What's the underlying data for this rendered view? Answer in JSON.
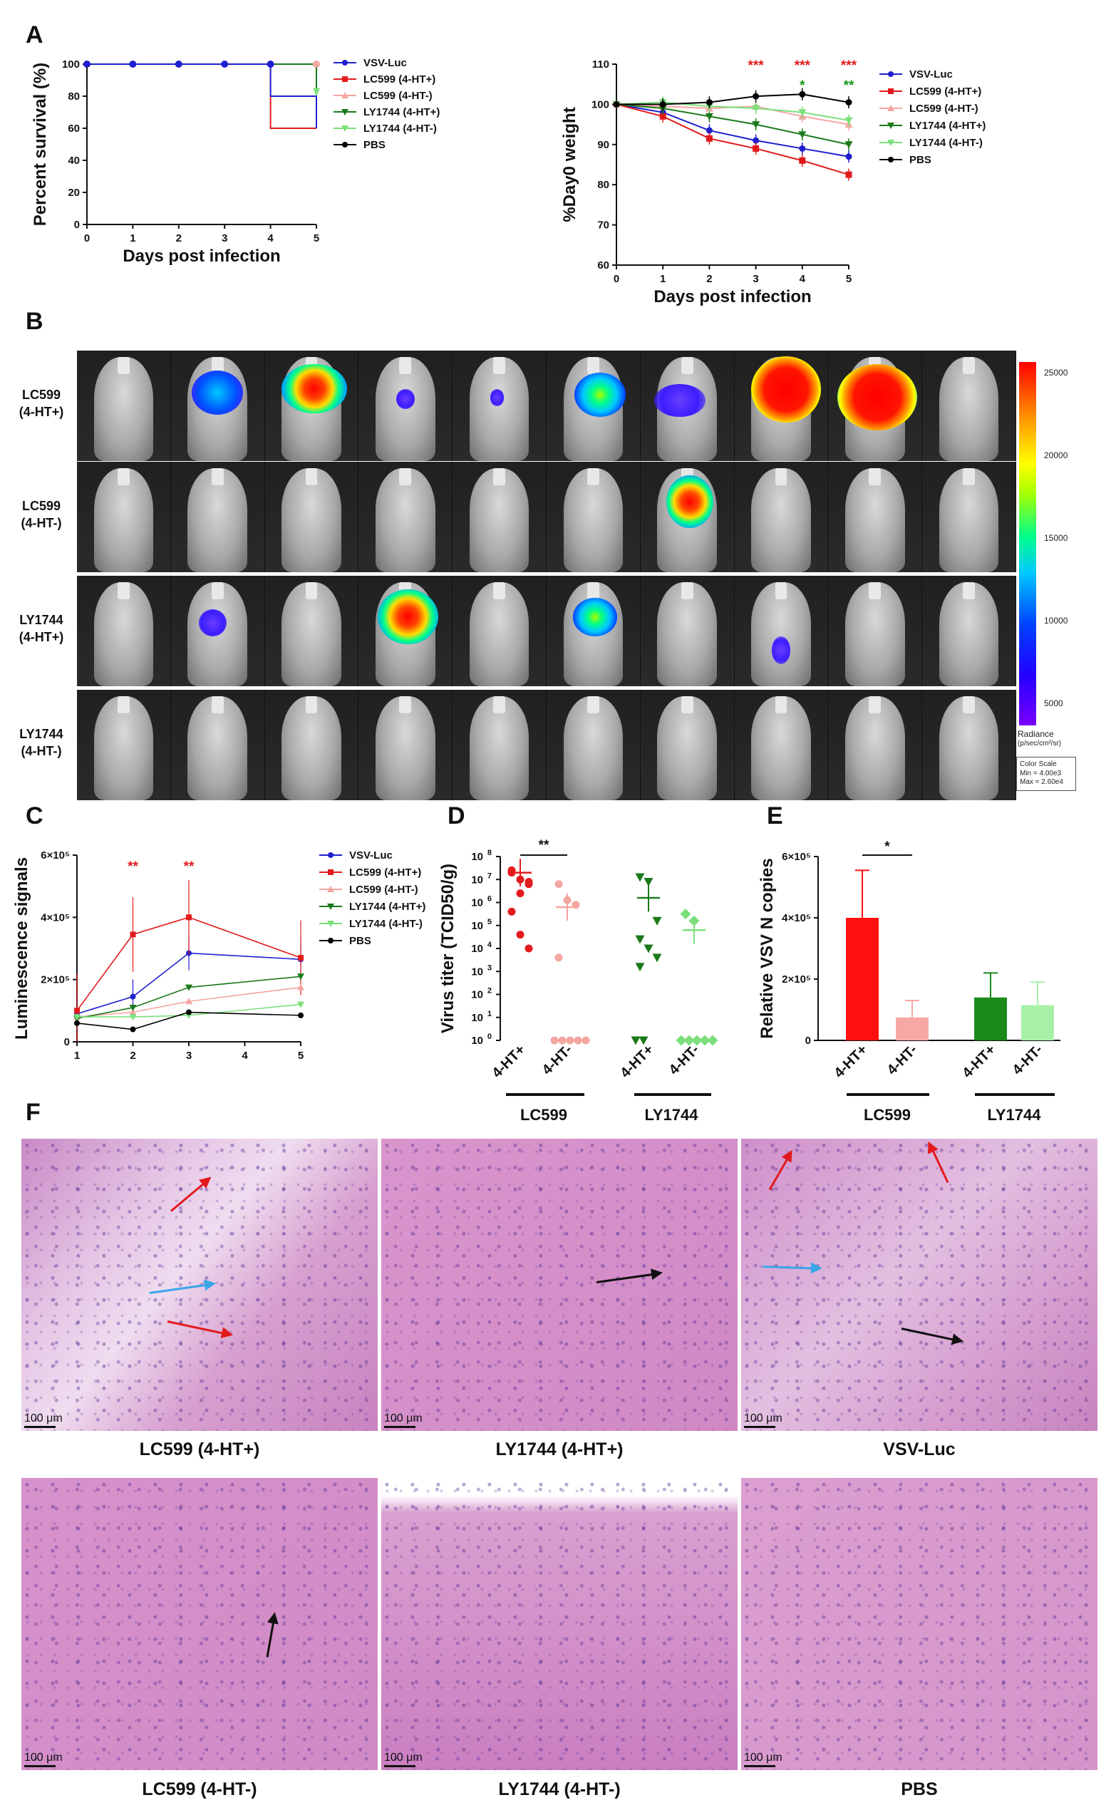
{
  "panels": {
    "A": "A",
    "B": "B",
    "C": "C",
    "D": "D",
    "E": "E",
    "F": "F"
  },
  "colors": {
    "vsv": "#1f1fd0",
    "lc599p": "#e31a1c",
    "lc599m": "#f4a6a0",
    "ly1744p": "#1a7a1a",
    "ly1744m": "#7be07b",
    "pbs": "#000000"
  },
  "chart_data": [
    {
      "id": "A1",
      "type": "line",
      "title": "",
      "xlabel": "Days post infection",
      "ylabel": "Percent survival (%)",
      "xlim": [
        0,
        5
      ],
      "ylim": [
        0,
        100
      ],
      "xticks": [
        "0",
        "1",
        "2",
        "3",
        "4",
        "5"
      ],
      "yticks": [
        "0",
        "20",
        "40",
        "60",
        "80",
        "100"
      ],
      "legend": [
        "VSV-Luc",
        "LC599 (4-HT+)",
        "LC599 (4-HT-)",
        "LY1744 (4-HT+)",
        "LY1744 (4-HT-)",
        "PBS"
      ],
      "series": [
        {
          "name": "VSV-Luc",
          "x": [
            0,
            1,
            2,
            3,
            4,
            4,
            5,
            5
          ],
          "y": [
            100,
            100,
            100,
            100,
            100,
            80,
            80,
            60
          ],
          "step": true
        },
        {
          "name": "LC599 (4-HT+)",
          "x": [
            0,
            4,
            4,
            5
          ],
          "y": [
            100,
            100,
            60,
            60
          ],
          "step": true
        },
        {
          "name": "LC599 (4-HT-)",
          "x": [
            0,
            5
          ],
          "y": [
            100,
            100
          ]
        },
        {
          "name": "LY1744 (4-HT+)",
          "x": [
            0,
            5,
            5
          ],
          "y": [
            100,
            100,
            80
          ]
        },
        {
          "name": "LY1744 (4-HT-)",
          "x": [
            0,
            5
          ],
          "y": [
            100,
            100
          ]
        },
        {
          "name": "PBS",
          "x": [
            0,
            5
          ],
          "y": [
            100,
            100
          ]
        }
      ]
    },
    {
      "id": "A2",
      "type": "line",
      "title": "",
      "xlabel": "Days post infection",
      "ylabel": "%Day0 weight",
      "xlim": [
        0,
        5
      ],
      "ylim": [
        60,
        110
      ],
      "xticks": [
        "0",
        "1",
        "2",
        "3",
        "4",
        "5"
      ],
      "yticks": [
        "60",
        "70",
        "80",
        "90",
        "100",
        "110"
      ],
      "legend": [
        "VSV-Luc",
        "LC599 (4-HT+)",
        "LC599 (4-HT-)",
        "LY1744 (4-HT+)",
        "LY1744 (4-HT-)",
        "PBS"
      ],
      "x": [
        0,
        1,
        2,
        3,
        4,
        5
      ],
      "series": [
        {
          "name": "VSV-Luc",
          "values": [
            100,
            98,
            93.5,
            91,
            89,
            87
          ]
        },
        {
          "name": "LC599 (4-HT+)",
          "values": [
            100,
            97,
            91.5,
            89,
            86,
            82.5
          ]
        },
        {
          "name": "LC599 (4-HT-)",
          "values": [
            100,
            99.5,
            99,
            99.5,
            97,
            95
          ]
        },
        {
          "name": "LY1744 (4-HT+)",
          "values": [
            100,
            99,
            97,
            95,
            92.5,
            90
          ]
        },
        {
          "name": "LY1744 (4-HT-)",
          "values": [
            100,
            100.5,
            99.5,
            99,
            98,
            96
          ]
        },
        {
          "name": "PBS",
          "values": [
            100,
            100,
            100.5,
            102,
            102.5,
            100.5
          ]
        }
      ],
      "annotations": [
        {
          "x": 3,
          "text": "***",
          "color": "red"
        },
        {
          "x": 4,
          "text": "***",
          "color": "red"
        },
        {
          "x": 5,
          "text": "***",
          "color": "red"
        },
        {
          "x": 4,
          "text": "*",
          "color": "green"
        },
        {
          "x": 5,
          "text": "**",
          "color": "green"
        }
      ]
    },
    {
      "id": "C",
      "type": "line",
      "title": "",
      "xlabel": "",
      "ylabel": "Luminescence signals",
      "xlim": [
        1,
        5
      ],
      "ylim": [
        0,
        600000
      ],
      "xticks": [
        "1",
        "2",
        "3",
        "4",
        "5"
      ],
      "yticks": [
        "0",
        "2×10⁵",
        "4×10⁵",
        "6×10⁵"
      ],
      "legend": [
        "VSV-Luc",
        "LC599 (4-HT+)",
        "LC599 (4-HT-)",
        "LY1744 (4-HT+)",
        "LY1744 (4-HT-)",
        "PBS"
      ],
      "x": [
        1,
        2,
        3,
        5
      ],
      "series": [
        {
          "name": "VSV-Luc",
          "values": [
            90000,
            145000,
            285000,
            265000
          ]
        },
        {
          "name": "LC599 (4-HT+)",
          "values": [
            100000,
            345000,
            400000,
            270000
          ]
        },
        {
          "name": "LC599 (4-HT-)",
          "values": [
            80000,
            95000,
            130000,
            175000
          ]
        },
        {
          "name": "LY1744 (4-HT+)",
          "values": [
            75000,
            110000,
            175000,
            210000
          ]
        },
        {
          "name": "LY1744 (4-HT-)",
          "values": [
            80000,
            80000,
            85000,
            120000
          ]
        },
        {
          "name": "PBS",
          "values": [
            60000,
            40000,
            95000,
            85000
          ]
        }
      ],
      "annotations": [
        {
          "x": 2,
          "text": "**"
        },
        {
          "x": 3,
          "text": "**"
        }
      ]
    },
    {
      "id": "D",
      "type": "scatter",
      "title": "",
      "ylabel": "Virus titer (TCID50/g)",
      "yscale": "log",
      "ylim_exp": [
        0,
        8
      ],
      "groups": [
        "4-HT+",
        "4-HT-",
        "4-HT+",
        "4-HT-"
      ],
      "group_labels": [
        "LC599",
        "LY1744"
      ],
      "points_log10": [
        [
          7.3,
          7.0,
          6.8,
          7.4,
          6.4,
          6.9,
          5.6,
          4.6,
          4.0
        ],
        [
          6.8,
          6.1,
          5.9,
          3.6,
          0,
          0,
          0,
          0,
          0
        ],
        [
          7.1,
          6.9,
          5.2,
          4.4,
          4.0,
          3.6,
          3.2,
          0,
          0
        ],
        [
          5.5,
          5.2,
          0,
          0,
          0,
          0,
          0
        ]
      ],
      "means_log10": [
        7.3,
        5.8,
        6.2,
        4.8
      ],
      "annotation": "**"
    },
    {
      "id": "E",
      "type": "bar",
      "title": "",
      "ylabel": "Relative VSV N copies",
      "ylim": [
        0,
        600000
      ],
      "yticks": [
        "0",
        "2×10⁵",
        "4×10⁵",
        "6×10⁵"
      ],
      "categories": [
        "4-HT+",
        "4-HT-",
        "4-HT+",
        "4-HT-"
      ],
      "group_labels": [
        "LC599",
        "LY1744"
      ],
      "values": [
        400000,
        75000,
        140000,
        115000
      ],
      "errors": [
        155000,
        55000,
        80000,
        75000
      ],
      "annotation": "*"
    }
  ],
  "panelB": {
    "rows": [
      "LC599\n(4-HT+)",
      "LC599\n(4-HT-)",
      "LY1744\n(4-HT+)",
      "LY1744\n(4-HT-)"
    ],
    "row_labels": [
      [
        "LC599",
        "(4-HT+)"
      ],
      [
        "LC599",
        "(4-HT-)"
      ],
      [
        "LY1744",
        "(4-HT+)"
      ],
      [
        "LY1744",
        "(4-HT-)"
      ]
    ],
    "colorbar_ticks": [
      "25000",
      "20000",
      "15000",
      "10000",
      "5000"
    ],
    "radiance_label": "Radiance",
    "radiance_unit": "(p/sec/cm²/sr)",
    "color_scale_title": "Color Scale",
    "color_scale_min": "Min = 4.00e3",
    "color_scale_max": "Max = 2.60e4"
  },
  "panelF": {
    "scale": "100 μm",
    "captions": [
      "LC599 (4-HT+)",
      "LY1744 (4-HT+)",
      "VSV-Luc",
      "LC599 (4-HT-)",
      "LY1744 (4-HT-)",
      "PBS"
    ]
  }
}
